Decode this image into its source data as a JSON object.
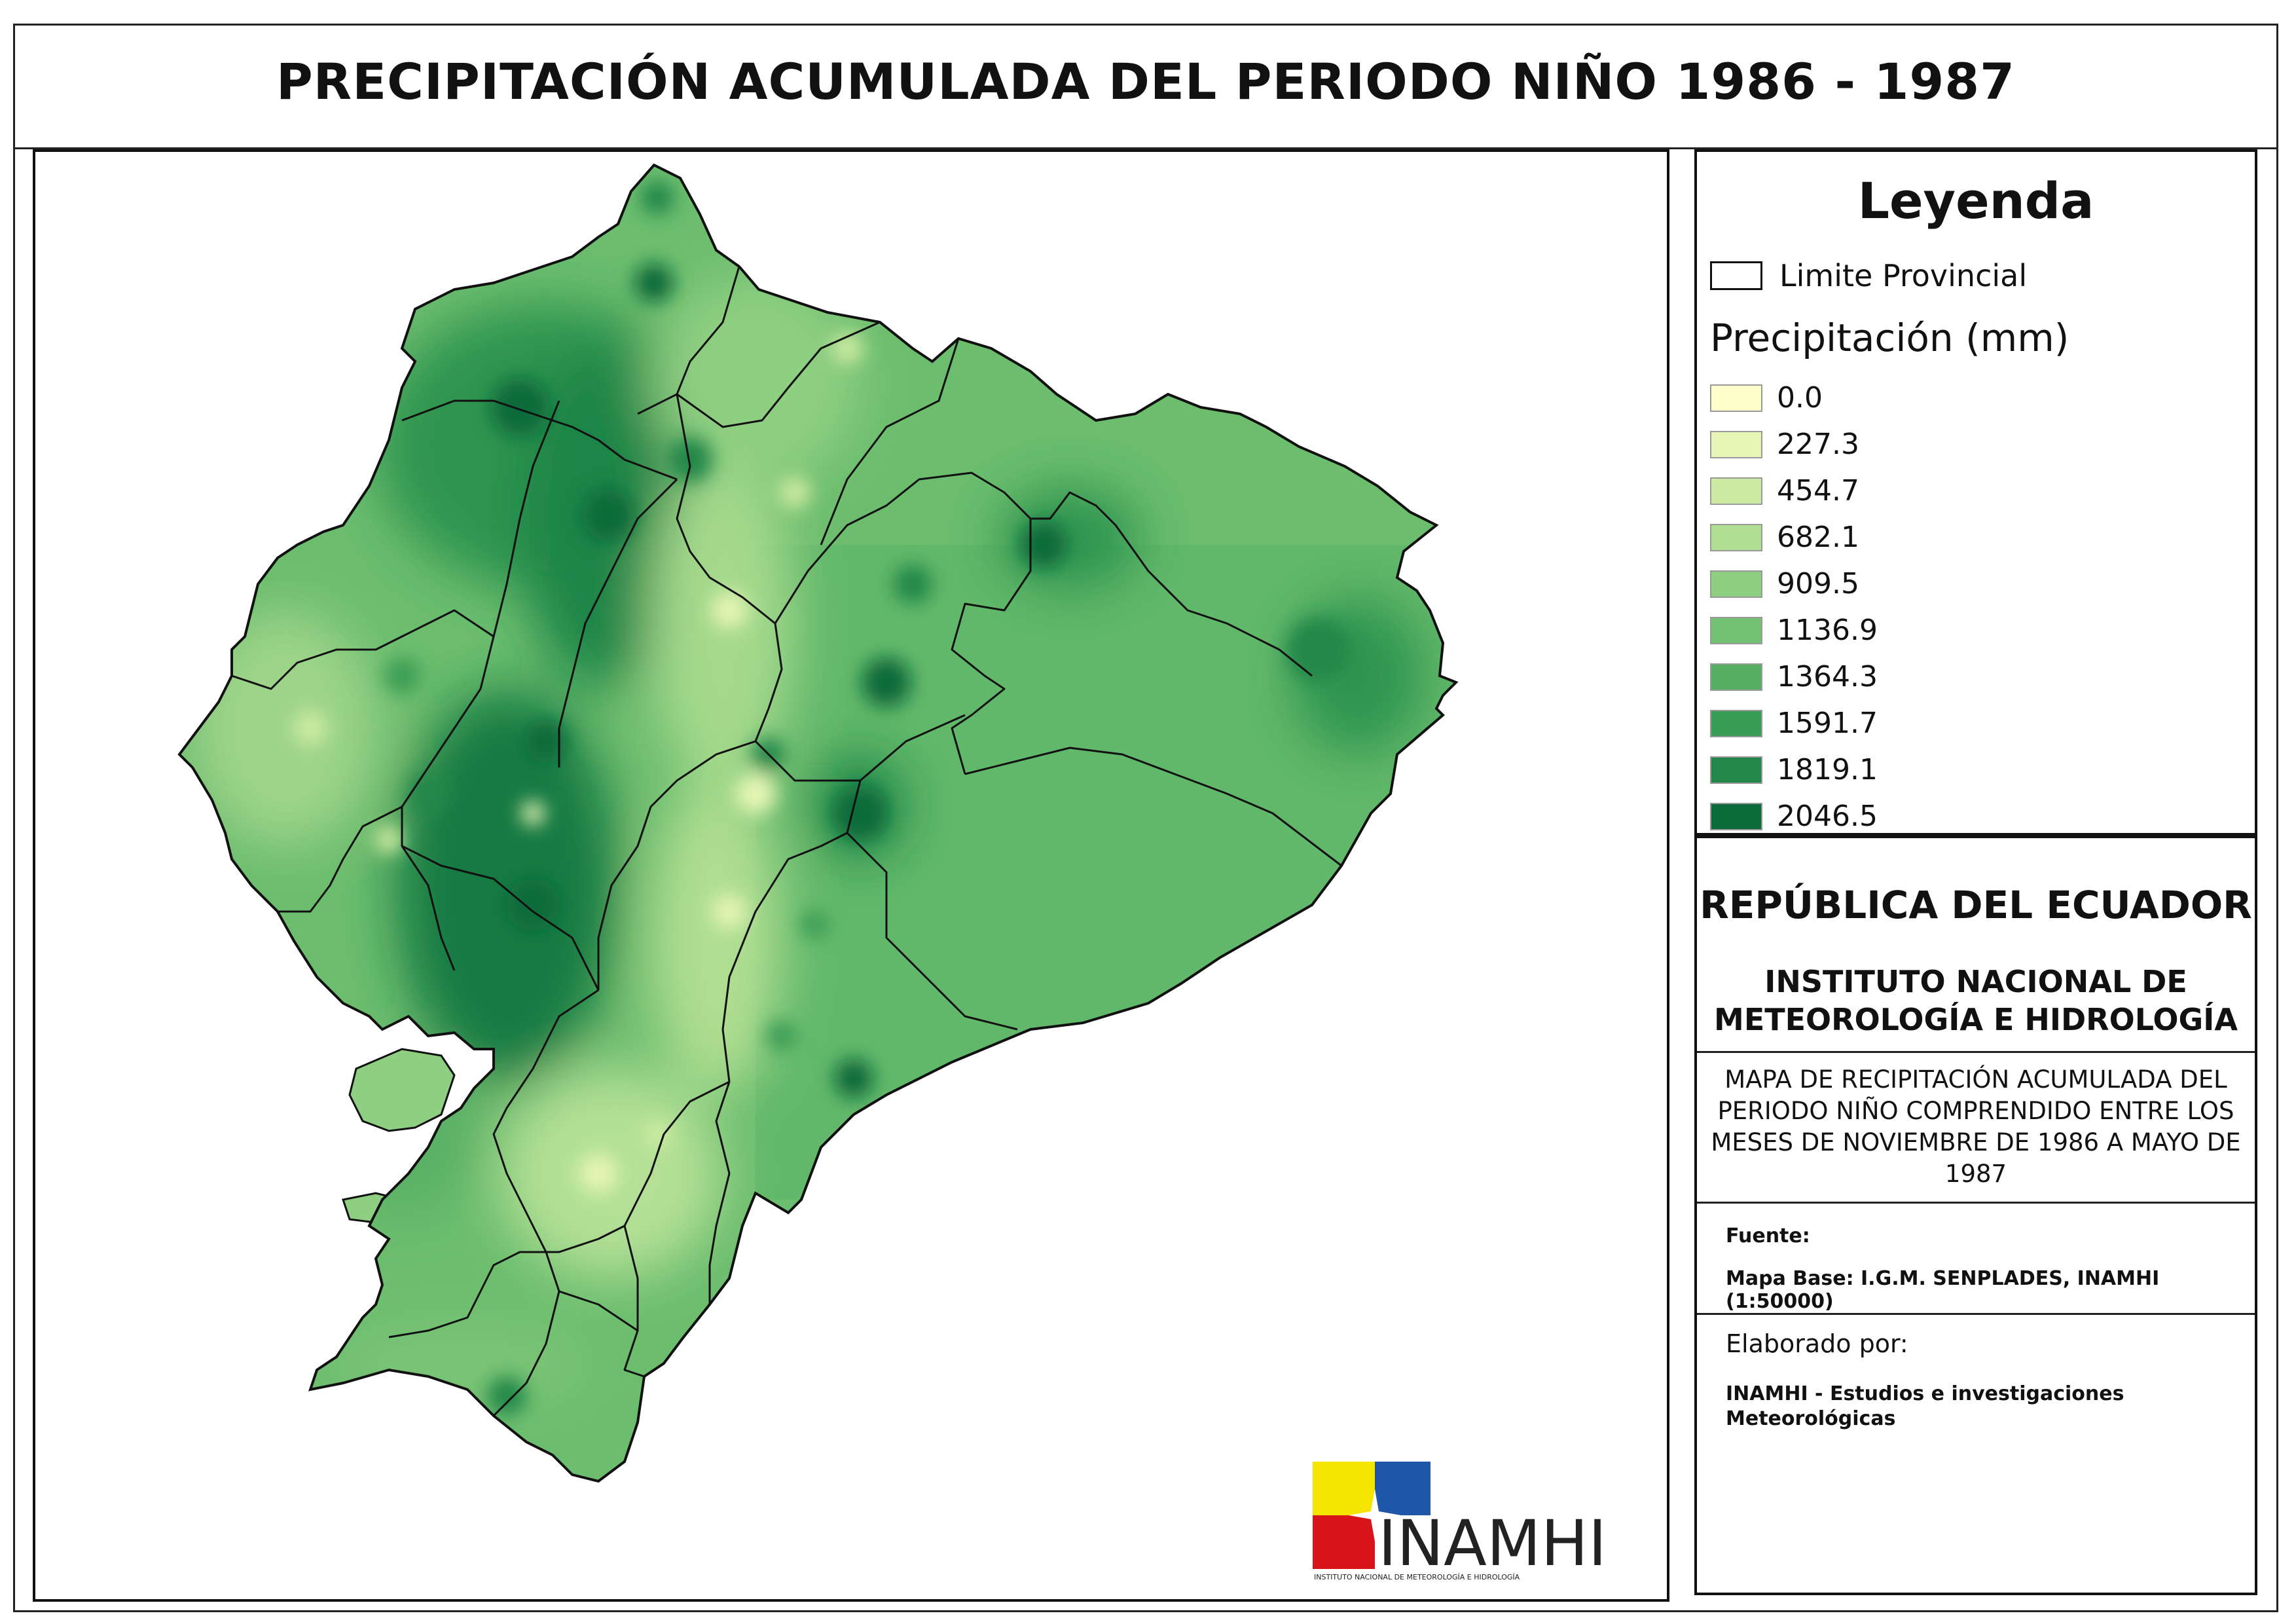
{
  "title": "PRECIPITACIÓN ACUMULADA DEL PERIODO NIÑO 1986 - 1987",
  "legend": {
    "title": "Leyenda",
    "provincial_label": "Limite Provincial",
    "subtitle": "Precipitación (mm)",
    "classes": [
      {
        "label": "0.0",
        "color": "#ffffcc"
      },
      {
        "label": "227.3",
        "color": "#e6f5b6"
      },
      {
        "label": "454.7",
        "color": "#cdeba3"
      },
      {
        "label": "682.1",
        "color": "#afde92"
      },
      {
        "label": "909.5",
        "color": "#8fcf82"
      },
      {
        "label": "1136.9",
        "color": "#72c072"
      },
      {
        "label": "1364.3",
        "color": "#56b063"
      },
      {
        "label": "1591.7",
        "color": "#3a9d55"
      },
      {
        "label": "1819.1",
        "color": "#23874a"
      },
      {
        "label": "2046.5",
        "color": "#0b6b3a"
      }
    ]
  },
  "info": {
    "republic": "REPÚBLICA DEL ECUADOR",
    "institute_line1": "INSTITUTO NACIONAL DE",
    "institute_line2": "METEOROLOGÍA E HIDROLOGÍA",
    "description_lines": [
      "MAPA DE RECIPITACIÓN ACUMULADA DEL",
      "PERIODO NIÑO COMPRENDIDO ENTRE LOS",
      "MESES DE NOVIEMBRE DE 1986 A MAYO DE",
      "1987"
    ],
    "source_label": "Fuente:",
    "base_map": "Mapa Base: I.G.M. SENPLADES, INAMHI (1:50000)",
    "made_by_label": "Elaborado por:",
    "made_by_line1": "INAMHI - Estudios e investigaciones",
    "made_by_line2": "Meteorológicas"
  },
  "logo": {
    "text": "INAMHI",
    "tagline": "INSTITUTO NACIONAL DE METEOROLOGÍA E HIDROLOGÍA",
    "colors": {
      "yellow": "#f5e400",
      "blue": "#1e56a8",
      "red": "#d8141b"
    }
  }
}
